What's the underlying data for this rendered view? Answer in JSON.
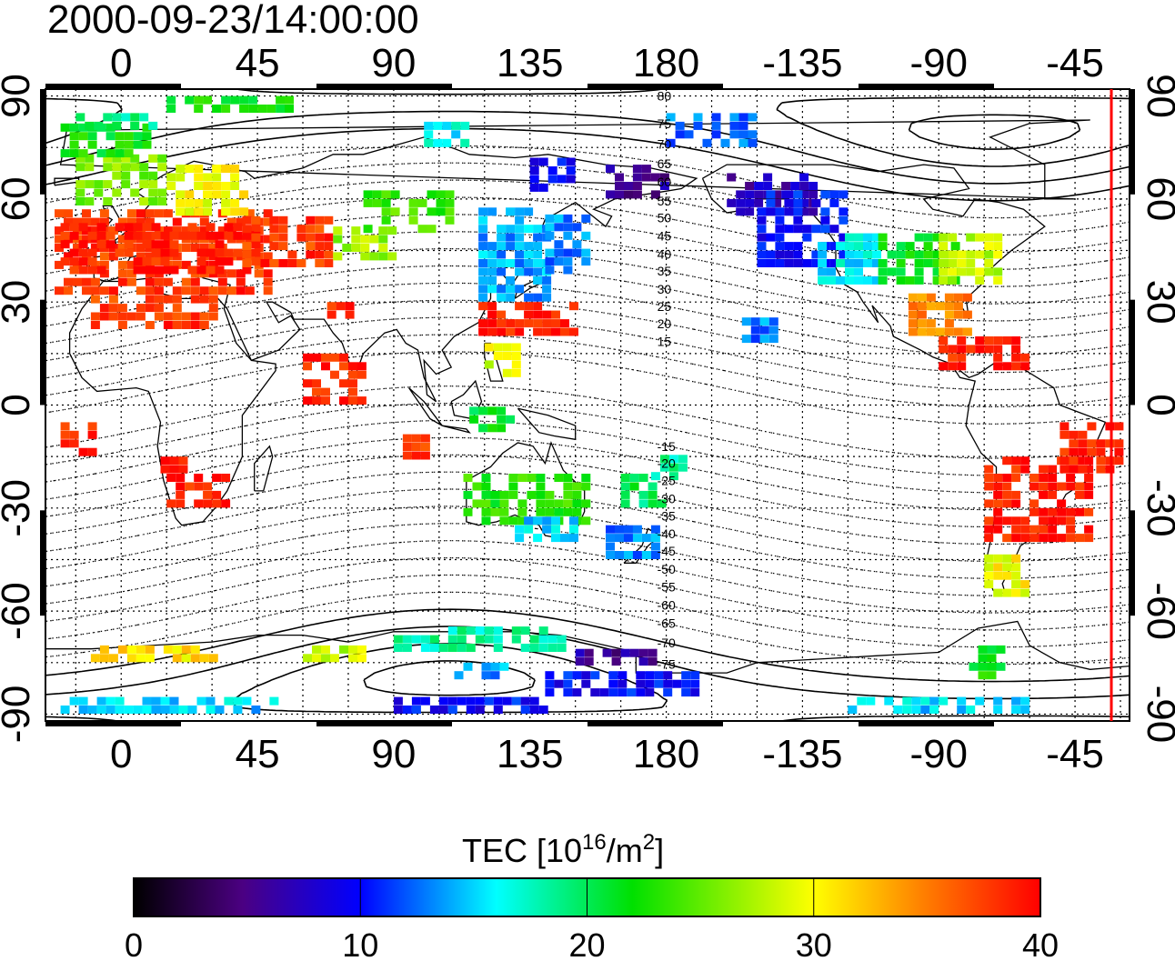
{
  "title": "2000-09-23/14:00:00",
  "map": {
    "top_lon_ticks": [
      "0",
      "45",
      "90",
      "135",
      "180",
      "-135",
      "-90",
      "-45"
    ],
    "bottom_lon_ticks": [
      "0",
      "45",
      "90",
      "135",
      "180",
      "-135",
      "-90",
      "-45"
    ],
    "left_lat_ticks": [
      "90",
      "60",
      "30",
      "0",
      "-30",
      "-60",
      "-90"
    ],
    "right_lat_ticks": [
      "90",
      "60",
      "30",
      "0",
      "-30",
      "-60",
      "-90"
    ],
    "lon_range": [
      -25,
      333
    ],
    "lat_range": [
      -92,
      92
    ],
    "terminator_lon": 327,
    "terminator_color": "#ff0000",
    "contour_labels": [
      "80",
      "75",
      "70",
      "65",
      "60",
      "55",
      "50",
      "45",
      "40",
      "35",
      "30",
      "25",
      "20",
      "15",
      "-15",
      "-20",
      "-25",
      "-30",
      "-35",
      "-40",
      "-45",
      "-50",
      "-55",
      "-60",
      "-65",
      "-70",
      "-75"
    ]
  },
  "colorbar": {
    "title_prefix": "TEC  [10",
    "title_sup1": "16",
    "title_mid": "/m",
    "title_sup2": "2",
    "title_suffix": "]",
    "tick_labels": [
      "0",
      "10",
      "20",
      "30",
      "40"
    ],
    "range": [
      0,
      40
    ],
    "colors": [
      "#000000",
      "#5a00a0",
      "#0000ff",
      "#00ffff",
      "#00d000",
      "#ffff00",
      "#ff8000",
      "#ff0000"
    ]
  }
}
